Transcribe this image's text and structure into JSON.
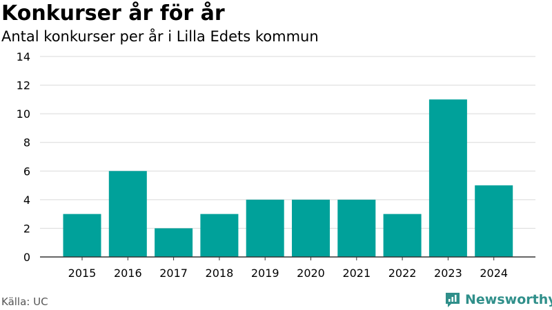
{
  "chart_data": {
    "type": "bar",
    "title": "Konkurser år för år",
    "subtitle": "Antal konkurser per år i Lilla Edets kommun",
    "categories": [
      "2015",
      "2016",
      "2017",
      "2018",
      "2019",
      "2020",
      "2021",
      "2022",
      "2023",
      "2024"
    ],
    "values": [
      3,
      6,
      2,
      3,
      4,
      4,
      4,
      3,
      11,
      5
    ],
    "ylim": [
      0,
      14
    ],
    "yticks": [
      0,
      2,
      4,
      6,
      8,
      10,
      12,
      14
    ],
    "grid": true,
    "bar_color": "#00a19a",
    "grid_color": "#d9d9d9"
  },
  "footer": {
    "source": "Källa: UC",
    "brand": "Newsworthy",
    "brand_icon": "newsworthy-logo-icon",
    "brand_color": "#2f8f8a"
  }
}
